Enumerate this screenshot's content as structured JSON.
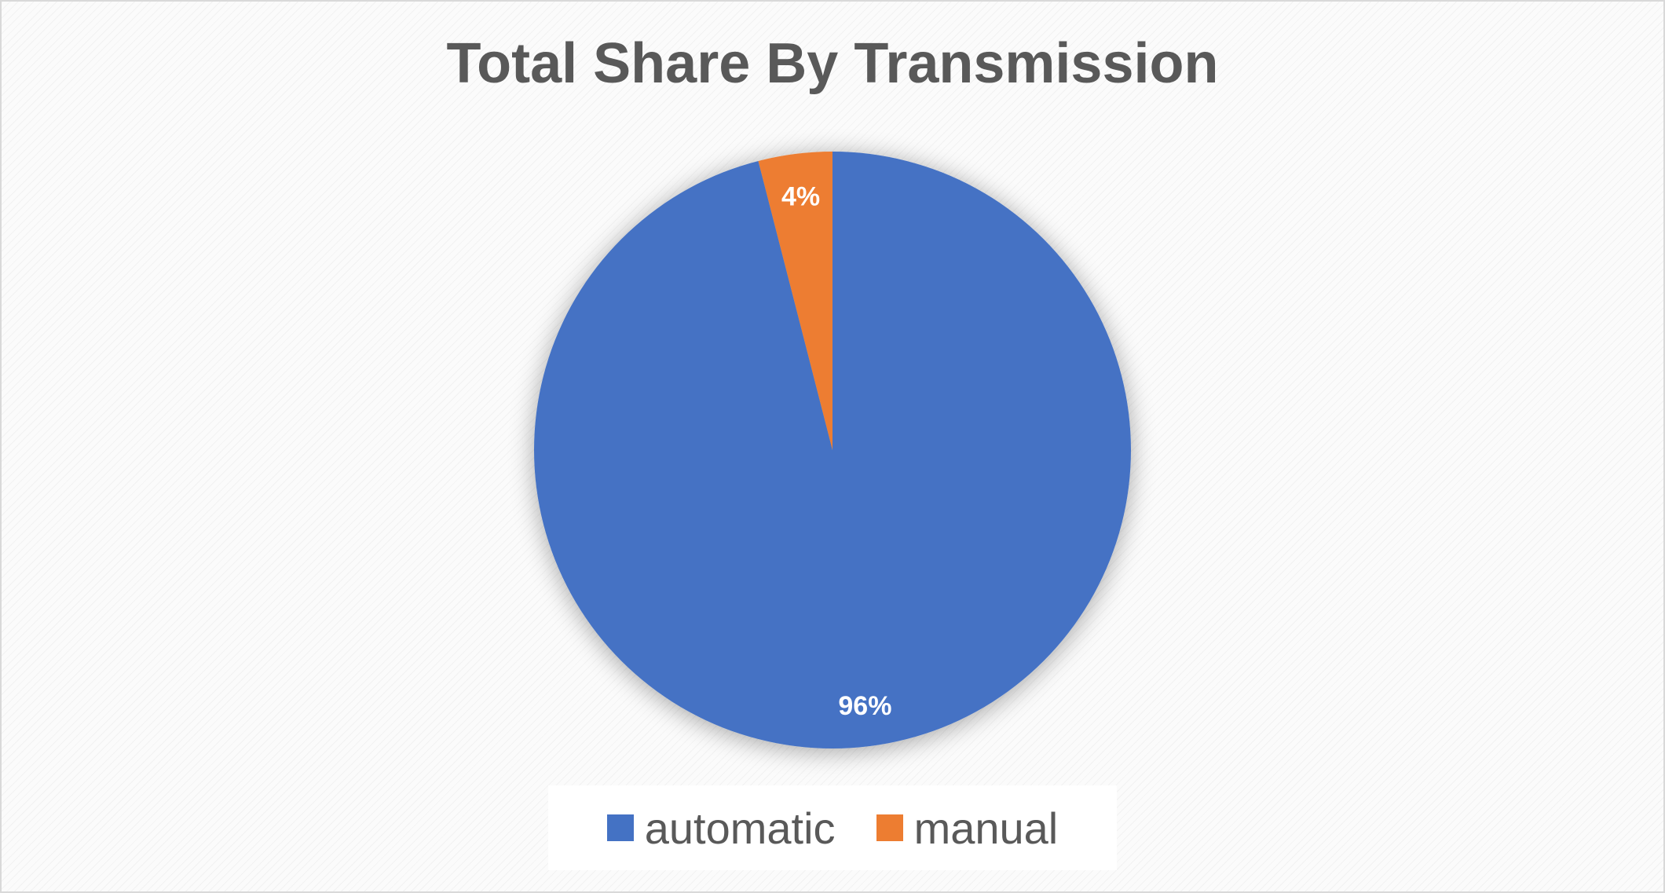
{
  "chart_data": {
    "type": "pie",
    "title": "Total Share By Transmission",
    "slices": [
      {
        "label": "automatic",
        "value": 96,
        "display": "96%",
        "color": "#4472C4"
      },
      {
        "label": "manual",
        "value": 4,
        "display": "4%",
        "color": "#ED7D31"
      }
    ],
    "legend_position": "bottom"
  }
}
